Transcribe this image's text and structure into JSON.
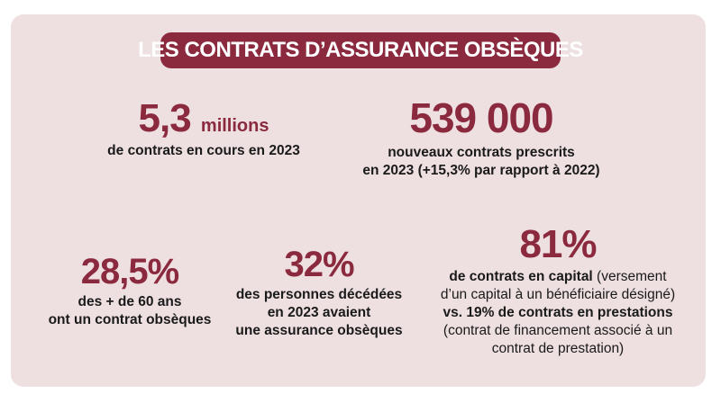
{
  "title": "LES CONTRATS D’ASSURANCE OBSÈQUES",
  "stats": {
    "contracts_in_force": {
      "value": "5,3",
      "unit": "millions",
      "description": "de contrats en cours en 2023"
    },
    "new_contracts": {
      "value": "539 000",
      "description_line1": "nouveaux contrats prescrits",
      "description_line2": "en 2023 (+15,3% par rapport à 2022)"
    },
    "over_60": {
      "value": "28,5%",
      "description_line1": "des + de 60 ans",
      "description_line2": "ont un contrat obsèques"
    },
    "deceased": {
      "value": "32%",
      "description_line1": "des personnes décédées",
      "description_line2": "en 2023 avaient",
      "description_line3": "une assurance obsèques"
    },
    "capital_contracts": {
      "value": "81%",
      "line1_bold": "de contrats en capital",
      "line1_light": " (versement",
      "line2": "d’un capital à un bénéficiaire désigné)",
      "line3_bold": "vs. 19% de contrats en prestations",
      "line4": "(contrat de financement associé à un",
      "line5": "contrat de prestation)"
    }
  },
  "colors": {
    "accent": "#8b2a3e",
    "background": "#eedfe1"
  }
}
